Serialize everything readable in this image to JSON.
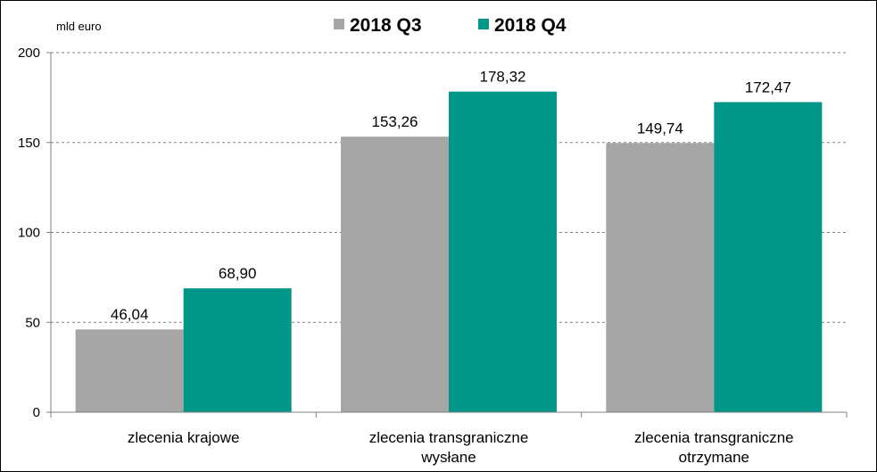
{
  "chart_data": {
    "type": "bar",
    "unit_label": "mld euro",
    "categories": [
      [
        "zlecenia krajowe"
      ],
      [
        "zlecenia transgraniczne",
        "wysłane"
      ],
      [
        "zlecenia transgraniczne",
        "otrzymane"
      ]
    ],
    "series": [
      {
        "name": "2018 Q3",
        "color": "#a6a6a6",
        "values": [
          46.04,
          153.26,
          149.74
        ],
        "labels": [
          "46,04",
          "153,26",
          "149,74"
        ]
      },
      {
        "name": "2018 Q4",
        "color": "#009688",
        "values": [
          68.9,
          178.32,
          172.47
        ],
        "labels": [
          "68,90",
          "178,32",
          "172,47"
        ]
      }
    ],
    "ylim": [
      0,
      200
    ],
    "yticks": [
      0,
      50,
      100,
      150,
      200
    ],
    "grid": true,
    "legend_position": "top-center"
  }
}
